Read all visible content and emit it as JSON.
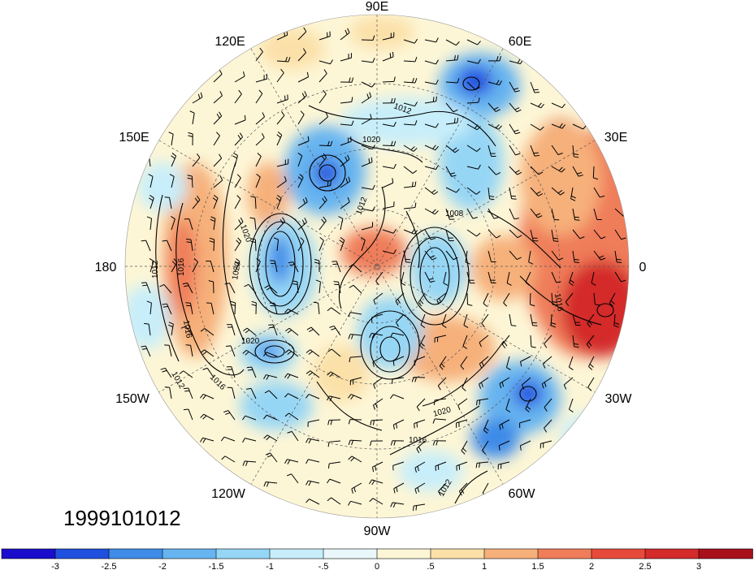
{
  "map": {
    "projection": "north-polar-stereographic",
    "center": "north-pole",
    "lon_labels": [
      {
        "key": "90e",
        "text": "90E"
      },
      {
        "key": "120e",
        "text": "120E"
      },
      {
        "key": "60e",
        "text": "60E"
      },
      {
        "key": "150e",
        "text": "150E"
      },
      {
        "key": "30e",
        "text": "30E"
      },
      {
        "key": "180",
        "text": "180"
      },
      {
        "key": "0",
        "text": "0"
      },
      {
        "key": "150w",
        "text": "150W"
      },
      {
        "key": "30w",
        "text": "30W"
      },
      {
        "key": "120w",
        "text": "120W"
      },
      {
        "key": "60w",
        "text": "60W"
      },
      {
        "key": "90w",
        "text": "90W"
      }
    ],
    "contour_labels": [
      "1012",
      "1020",
      "1012",
      "1008",
      "1020",
      "1020",
      "1012",
      "1016",
      "1016",
      "1012",
      "1016",
      "1020",
      "1020",
      "1016",
      "1016",
      "1012"
    ],
    "date_stamp": "1999101012",
    "overlays": [
      "shaded-anomaly-field",
      "sea-level-pressure-contours",
      "wind-barbs",
      "coastlines",
      "lat-lon-grid"
    ]
  },
  "colorbar": {
    "orientation": "horizontal",
    "colors": [
      "#1a0ecc",
      "#2050e0",
      "#3e8be8",
      "#66b4f0",
      "#96d6f5",
      "#c7eefa",
      "#e9f7fb",
      "#fdf6d6",
      "#fbe0a8",
      "#f6b07a",
      "#ef7d5a",
      "#e84a3a",
      "#d42a2a",
      "#a8101c"
    ],
    "tick_labels": [
      "-3",
      "-2.5",
      "-2",
      "-1.5",
      "-1",
      "-.5",
      "0",
      ".5",
      "1",
      "1.5",
      "2",
      "2.5",
      "3"
    ]
  }
}
